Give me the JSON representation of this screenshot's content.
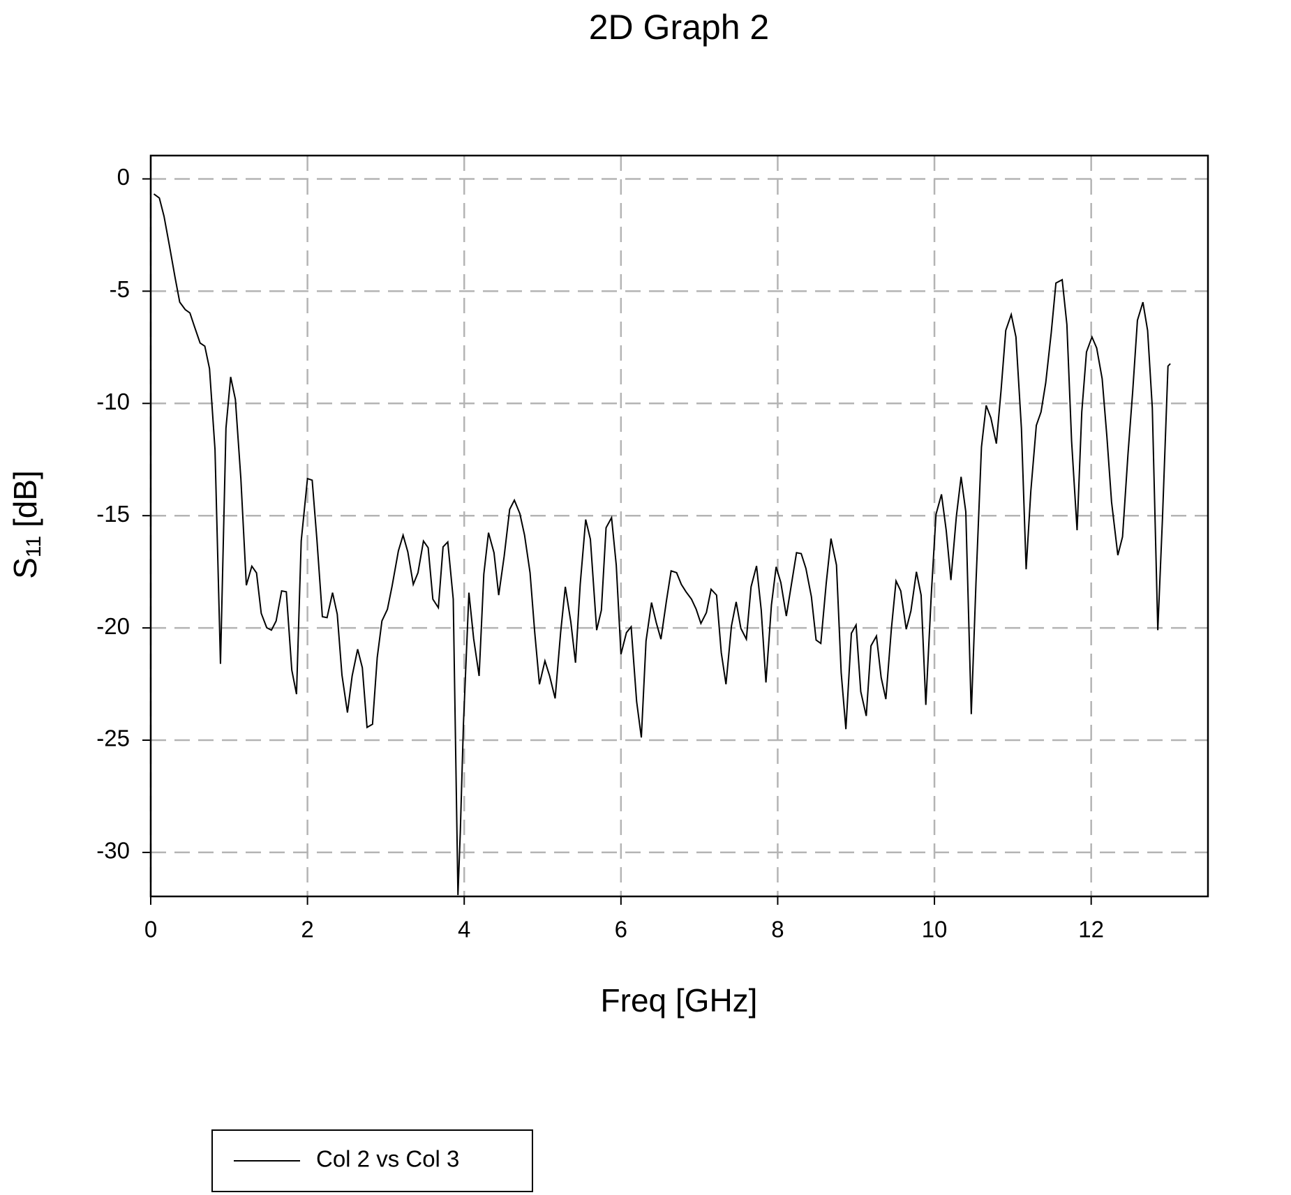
{
  "chart_data": {
    "type": "line",
    "title": "2D Graph 2",
    "x_label": "Freq [GHz]",
    "y_label": {
      "symbol": "S",
      "subscript": "11",
      "unit": "[dB]"
    },
    "x": [
      0.04,
      0.11,
      0.17,
      0.24,
      0.31,
      0.37,
      0.44,
      0.5,
      0.56,
      0.63,
      0.69,
      0.75,
      0.82,
      0.89,
      0.96,
      1.02,
      1.08,
      1.15,
      1.22,
      1.29,
      1.35,
      1.41,
      1.48,
      1.54,
      1.6,
      1.67,
      1.73,
      1.8,
      1.86,
      1.92,
      2.0,
      2.06,
      2.12,
      2.19,
      2.25,
      2.32,
      2.38,
      2.44,
      2.51,
      2.57,
      2.64,
      2.7,
      2.76,
      2.83,
      2.89,
      2.95,
      3.02,
      3.08,
      3.16,
      3.22,
      3.28,
      3.35,
      3.41,
      3.48,
      3.54,
      3.6,
      3.67,
      3.73,
      3.79,
      3.86,
      3.92,
      3.95,
      3.99,
      4.06,
      4.12,
      4.19,
      4.25,
      4.31,
      4.38,
      4.44,
      4.51,
      4.58,
      4.64,
      4.71,
      4.77,
      4.84,
      4.9,
      4.96,
      5.03,
      5.09,
      5.16,
      5.23,
      5.29,
      5.36,
      5.42,
      5.48,
      5.55,
      5.61,
      5.69,
      5.75,
      5.81,
      5.88,
      5.94,
      6.0,
      6.07,
      6.13,
      6.2,
      6.26,
      6.32,
      6.39,
      6.45,
      6.51,
      6.58,
      6.64,
      6.71,
      6.77,
      6.83,
      6.9,
      6.96,
      7.02,
      7.09,
      7.15,
      7.22,
      7.28,
      7.34,
      7.41,
      7.47,
      7.53,
      7.6,
      7.66,
      7.73,
      7.79,
      7.85,
      7.92,
      7.98,
      8.04,
      8.11,
      8.17,
      8.24,
      8.3,
      8.36,
      8.43,
      8.49,
      8.55,
      8.62,
      8.68,
      8.75,
      8.81,
      8.87,
      8.94,
      9.0,
      9.06,
      9.13,
      9.19,
      9.26,
      9.32,
      9.38,
      9.45,
      9.51,
      9.57,
      9.64,
      9.7,
      9.77,
      9.83,
      9.89,
      9.96,
      10.02,
      10.09,
      10.15,
      10.21,
      10.28,
      10.34,
      10.4,
      10.47,
      10.53,
      10.6,
      10.66,
      10.72,
      10.79,
      10.85,
      10.91,
      10.98,
      11.04,
      11.11,
      11.17,
      11.23,
      11.3,
      11.36,
      11.42,
      11.49,
      11.55,
      11.63,
      11.69,
      11.75,
      11.82,
      11.88,
      11.94,
      12.01,
      12.07,
      12.14,
      12.2,
      12.26,
      12.34,
      12.4,
      12.47,
      12.53,
      12.59,
      12.66,
      12.72,
      12.78,
      12.85,
      12.91,
      12.98,
      13.01
    ],
    "series": [
      {
        "name": "Col 2 vs Col 3",
        "color": "#000000",
        "values": [
          -0.67,
          -0.85,
          -1.67,
          -3.0,
          -4.38,
          -5.49,
          -5.82,
          -5.97,
          -6.6,
          -7.31,
          -7.45,
          -8.45,
          -12.05,
          -21.6,
          -11.1,
          -8.82,
          -9.82,
          -13.35,
          -18.1,
          -17.25,
          -17.55,
          -19.35,
          -19.99,
          -20.1,
          -19.69,
          -18.35,
          -18.39,
          -21.88,
          -22.95,
          -16.13,
          -13.35,
          -13.42,
          -16.05,
          -19.5,
          -19.54,
          -18.43,
          -19.39,
          -22.1,
          -23.77,
          -22.14,
          -20.95,
          -21.77,
          -24.43,
          -24.29,
          -21.32,
          -19.69,
          -19.17,
          -18.13,
          -16.57,
          -15.87,
          -16.61,
          -18.06,
          -17.54,
          -16.13,
          -16.43,
          -18.72,
          -19.1,
          -16.39,
          -16.17,
          -18.72,
          -31.9,
          -29.1,
          -24.29,
          -18.43,
          -20.47,
          -22.14,
          -17.61,
          -15.76,
          -16.65,
          -18.54,
          -16.8,
          -14.72,
          -14.31,
          -14.91,
          -15.87,
          -17.54,
          -20.21,
          -22.51,
          -21.47,
          -22.14,
          -23.14,
          -20.21,
          -18.17,
          -19.73,
          -21.55,
          -18.06,
          -15.17,
          -16.05,
          -20.1,
          -19.21,
          -15.54,
          -15.09,
          -17.2,
          -21.17,
          -20.21,
          -19.95,
          -23.28,
          -24.88,
          -20.58,
          -18.87,
          -19.76,
          -20.5,
          -18.8,
          -17.46,
          -17.54,
          -18.06,
          -18.39,
          -18.72,
          -19.17,
          -19.8,
          -19.32,
          -18.28,
          -18.54,
          -21.1,
          -22.51,
          -19.91,
          -18.84,
          -20.02,
          -20.5,
          -18.17,
          -17.24,
          -19.21,
          -22.43,
          -18.98,
          -17.28,
          -17.98,
          -19.47,
          -18.17,
          -16.65,
          -16.69,
          -17.35,
          -18.61,
          -20.54,
          -20.69,
          -17.98,
          -16.02,
          -17.2,
          -21.99,
          -24.51,
          -20.24,
          -19.87,
          -22.84,
          -23.92,
          -20.8,
          -20.36,
          -22.21,
          -23.17,
          -20.06,
          -17.91,
          -18.35,
          -20.06,
          -19.24,
          -17.5,
          -18.54,
          -23.43,
          -18.5,
          -14.94,
          -14.05,
          -15.65,
          -17.87,
          -15.02,
          -13.27,
          -14.83,
          -23.84,
          -17.98,
          -11.94,
          -10.09,
          -10.64,
          -11.79,
          -9.42,
          -6.75,
          -6.04,
          -7.04,
          -11.12,
          -17.39,
          -13.9,
          -10.98,
          -10.38,
          -9.08,
          -6.86,
          -4.64,
          -4.49,
          -6.49,
          -11.68,
          -15.65,
          -10.38,
          -7.71,
          -7.04,
          -7.53,
          -8.9,
          -11.46,
          -14.39,
          -16.76,
          -15.94,
          -12.24,
          -9.45,
          -6.3,
          -5.49,
          -6.75,
          -10.2,
          -20.1,
          -15.09,
          -8.34,
          -8.23
        ]
      }
    ],
    "xlim": [
      0,
      13.49
    ],
    "xticks": [
      0,
      2,
      4,
      6,
      8,
      10,
      12
    ],
    "ylim": [
      -31.96,
      1.04
    ],
    "yticks": [
      0,
      -5,
      -10,
      -15,
      -20,
      -25,
      -30
    ],
    "grid": true,
    "legend": "bottom-left"
  }
}
